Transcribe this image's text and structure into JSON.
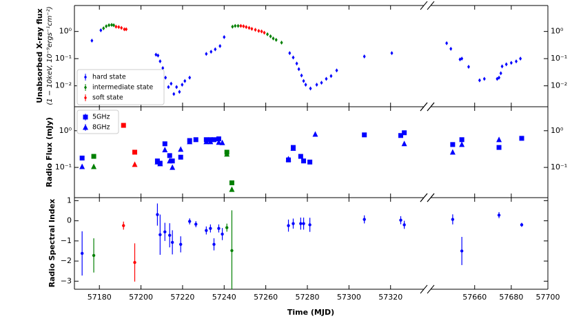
{
  "chart_data": [
    {
      "type": "scatter",
      "ylabel": "Unabsorbed X-ray flux",
      "ylabel2": "(1 − 10keV, 10⁻⁹ergs⁻¹cm⁻²)",
      "yscale": "log",
      "ylim": [
        0.0017,
        9
      ],
      "yticks": [
        {
          "value": 1,
          "label": "10⁰"
        },
        {
          "value": 0.1,
          "label": "10⁻¹"
        },
        {
          "value": 0.01,
          "label": "10⁻²"
        }
      ],
      "marker": "diamond",
      "legend": "lower left",
      "series": [
        {
          "name": "hard state",
          "color": "#0000ff",
          "x": [
            57176.4,
            57180.7,
            57207.2,
            57208.2,
            57209.2,
            57210.5,
            57211.8,
            57213.2,
            57214.5,
            57215.8,
            57217.1,
            57218.5,
            57219.8,
            57221.1,
            57223.4,
            57231.4,
            57233.7,
            57235.7,
            57238.0,
            57240.0,
            57271.5,
            57273.2,
            57274.9,
            57275.9,
            57277.2,
            57278.2,
            57279.2,
            57281.5,
            57284.5,
            57286.8,
            57289.1,
            57291.4,
            57294.1,
            57307.4,
            57320.6,
            57644.7,
            57647.0,
            57652.0,
            57653.0,
            57656.7,
            57662.7,
            57665.3,
            57672.3,
            57673.3,
            57674.3,
            57675.0,
            57677.3,
            57680.0,
            57682.7,
            57685.0
          ],
          "values": [
            0.46,
            1.1,
            0.14,
            0.13,
            0.08,
            0.045,
            0.02,
            0.009,
            0.012,
            0.005,
            0.009,
            0.006,
            0.011,
            0.015,
            0.02,
            0.15,
            0.18,
            0.22,
            0.29,
            0.62,
            0.16,
            0.11,
            0.066,
            0.041,
            0.024,
            0.015,
            0.011,
            0.008,
            0.011,
            0.013,
            0.018,
            0.023,
            0.037,
            0.12,
            0.16,
            0.37,
            0.23,
            0.094,
            0.1,
            0.05,
            0.016,
            0.018,
            0.018,
            0.02,
            0.029,
            0.052,
            0.062,
            0.07,
            0.079,
            0.1
          ]
        },
        {
          "name": "intermediate state",
          "color": "#008000",
          "x": [
            57182.0,
            57183.3,
            57184.6,
            57185.9,
            57186.9,
            57244.0,
            57245.3,
            57246.7,
            57260.8,
            57262.3,
            57263.6,
            57265.0,
            57267.6
          ],
          "values": [
            1.3,
            1.55,
            1.7,
            1.75,
            1.7,
            1.5,
            1.6,
            1.6,
            0.79,
            0.66,
            0.55,
            0.49,
            0.39
          ]
        },
        {
          "name": "soft state",
          "color": "#ff0000",
          "x": [
            57188.0,
            57189.3,
            57190.6,
            57192.0,
            57192.9,
            57248.0,
            57249.3,
            57250.6,
            57252.0,
            57253.3,
            57255.0,
            57256.6,
            57258.0,
            57259.3
          ],
          "values": [
            1.5,
            1.45,
            1.35,
            1.2,
            1.2,
            1.6,
            1.55,
            1.45,
            1.35,
            1.25,
            1.15,
            1.05,
            1.0,
            0.9
          ]
        }
      ]
    },
    {
      "type": "scatter",
      "ylabel": "Radio Flux (mJy)",
      "yscale": "log",
      "ylim": [
        0.015,
        4.5
      ],
      "yticks": [
        {
          "value": 1,
          "label": "10⁰"
        },
        {
          "value": 0.1,
          "label": "10⁻¹"
        }
      ],
      "legend": "upper left",
      "color": "#0000ff",
      "series": [
        {
          "name": "5GHz",
          "marker": "square",
          "x": [
            57171.7,
            57177.3,
            57191.6,
            57197.0,
            57207.9,
            57209.2,
            57211.5,
            57213.8,
            57215.1,
            57219.1,
            57223.4,
            57226.4,
            57231.4,
            57233.4,
            57235.1,
            57237.4,
            57241.3,
            57243.7,
            57270.9,
            57273.2,
            57276.8,
            57278.2,
            57281.2,
            57307.4,
            57324.9,
            57326.6,
            57648.0,
            57653.0,
            57673.3,
            57685.7
          ],
          "values": [
            0.18,
            0.2,
            1.4,
            0.26,
            0.15,
            0.13,
            0.44,
            0.21,
            0.15,
            0.19,
            0.54,
            0.57,
            0.57,
            0.57,
            0.57,
            0.6,
            0.26,
            0.038,
            0.16,
            0.35,
            0.2,
            0.15,
            0.14,
            0.77,
            0.74,
            0.88,
            0.42,
            0.57,
            0.35,
            0.62
          ],
          "colors": [
            "#0000ff",
            "#008000",
            "#ff0000",
            "#ff0000",
            "#0000ff",
            "#0000ff",
            "#0000ff",
            "#0000ff",
            "#0000ff",
            "#0000ff",
            "#0000ff",
            "#0000ff",
            "#0000ff",
            "#0000ff",
            "#0000ff",
            "#0000ff",
            "#008000",
            "#008000",
            "#0000ff",
            "#0000ff",
            "#0000ff",
            "#0000ff",
            "#0000ff",
            "#0000ff",
            "#0000ff",
            "#0000ff",
            "#0000ff",
            "#0000ff",
            "#0000ff",
            "#0000ff"
          ]
        },
        {
          "name": "8GHz",
          "marker": "triangle",
          "x": [
            57171.7,
            57177.3,
            57197.0,
            57207.9,
            57209.2,
            57211.5,
            57213.8,
            57215.1,
            57219.1,
            57223.4,
            57231.4,
            57233.4,
            57237.4,
            57239.1,
            57241.3,
            57243.7,
            57270.9,
            57273.2,
            57283.8,
            57326.6,
            57648.0,
            57653.0,
            57673.3
          ],
          "values": [
            0.105,
            0.105,
            0.12,
            0.14,
            0.125,
            0.3,
            0.15,
            0.1,
            0.31,
            0.5,
            0.5,
            0.5,
            0.48,
            0.47,
            0.23,
            0.025,
            0.17,
            0.33,
            0.8,
            0.44,
            0.26,
            0.42,
            0.57
          ],
          "colors": [
            "#0000ff",
            "#008000",
            "#ff0000",
            "#0000ff",
            "#0000ff",
            "#0000ff",
            "#0000ff",
            "#0000ff",
            "#0000ff",
            "#0000ff",
            "#0000ff",
            "#0000ff",
            "#0000ff",
            "#0000ff",
            "#008000",
            "#008000",
            "#0000ff",
            "#0000ff",
            "#0000ff",
            "#0000ff",
            "#0000ff",
            "#0000ff",
            "#0000ff"
          ]
        }
      ]
    },
    {
      "type": "errorbar",
      "ylabel": "Radio Spectral Index",
      "xlabel": "Time (MJD)",
      "ylim": [
        -3.4,
        1.15
      ],
      "yticks": [
        1,
        0,
        {
          "value": -1,
          "label": "−1"
        },
        {
          "value": -2,
          "label": "−2"
        },
        {
          "value": -3,
          "label": "−3"
        }
      ],
      "x_segments": [
        {
          "xlim": [
            57168,
            57336
          ],
          "xticks": [
            57180,
            57200,
            57220,
            57240,
            57260,
            57280,
            57300,
            57320
          ]
        },
        {
          "xlim": [
            57636,
            57700
          ],
          "xticks": [
            57660,
            57680,
            57700
          ]
        }
      ],
      "series": [
        {
          "color": "#0000ff",
          "x": [
            57171.7,
            57207.9,
            57209.2,
            57211.5,
            57213.8,
            57215.1,
            57219.1,
            57223.4,
            57226.4,
            57231.4,
            57233.4,
            57235.1,
            57237.4,
            57239.1,
            57270.9,
            57273.2,
            57276.8,
            57278.2,
            57281.2,
            57307.4,
            57324.9,
            57326.6,
            57648.0,
            57653.0,
            57673.3,
            57685.7
          ],
          "values": [
            -1.62,
            0.31,
            -0.69,
            -0.55,
            -0.72,
            -1.07,
            -1.17,
            -0.03,
            -0.17,
            -0.48,
            -0.38,
            -1.17,
            -0.38,
            -0.66,
            -0.24,
            -0.14,
            -0.14,
            -0.14,
            -0.2,
            0.07,
            0.03,
            -0.2,
            0.07,
            -1.5,
            0.28,
            -0.2
          ],
          "errors": [
            1.1,
            0.55,
            1.0,
            0.45,
            0.6,
            0.6,
            0.4,
            0.15,
            0.15,
            0.2,
            0.2,
            0.3,
            0.2,
            0.3,
            0.3,
            0.25,
            0.3,
            0.3,
            0.35,
            0.2,
            0.2,
            0.2,
            0.25,
            0.7,
            0.15,
            0.1
          ]
        },
        {
          "color": "#008000",
          "x": [
            57177.3,
            57241.3,
            57243.7
          ],
          "values": [
            -1.72,
            -0.34,
            -1.48
          ],
          "errors": [
            0.85,
            0.2,
            2.0
          ]
        },
        {
          "color": "#ff0000",
          "x": [
            57191.6,
            57197.0
          ],
          "values": [
            -0.24,
            -2.07
          ],
          "errors": [
            0.2,
            0.95
          ]
        }
      ]
    }
  ]
}
